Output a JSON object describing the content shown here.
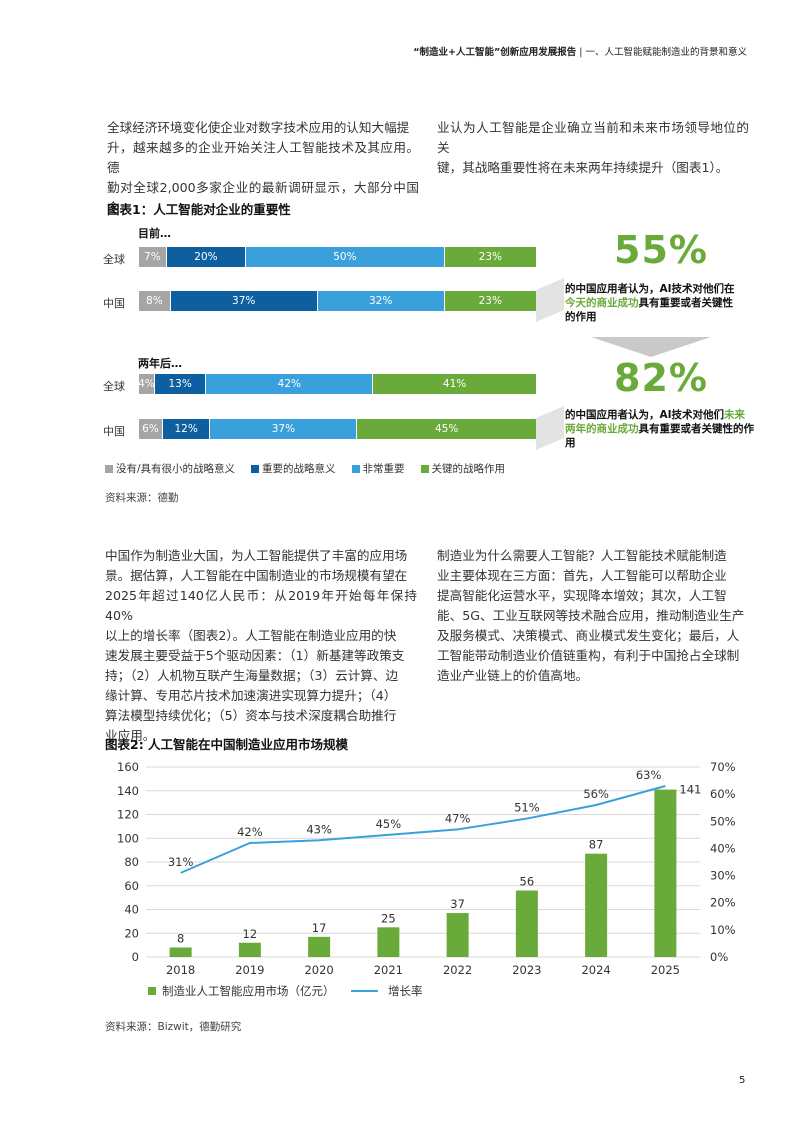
{
  "header": {
    "title": "“制造业+人工智能”创新应用发展报告",
    "section": "一、人工智能赋能制造业的背景和意义"
  },
  "intro": {
    "left_lines": [
      "全球经济环境变化使企业对数字技术应用的认知大幅提",
      "升，越来越多的企业开始关注人工智能技术及其应用。德",
      "勤对全球2,000多家企业的最新调研显示，大部分中国企"
    ],
    "right_lines": [
      "业认为人工智能是企业确立当前和未来市场领导地位的关",
      "键，其战略重要性将在未来两年持续提升（图表1）。"
    ]
  },
  "figure1": {
    "title": "图表1：人工智能对企业的重要性",
    "groups": [
      {
        "label": "目前…",
        "rows": [
          {
            "label": "全球",
            "values": [
              7,
              20,
              50,
              23
            ],
            "labels": [
              "7%",
              "20%",
              "50%",
              "23%"
            ]
          },
          {
            "label": "中国",
            "values": [
              8,
              37,
              32,
              23
            ],
            "labels": [
              "8%",
              "37%",
              "32%",
              "23%"
            ]
          }
        ],
        "big_number": "55%",
        "note_parts": [
          "的中国应用者认为，AI技术对他们在",
          "今天的商业成功",
          "具有重要或者关键性",
          "的作用"
        ]
      },
      {
        "label": "两年后…",
        "rows": [
          {
            "label": "全球",
            "values": [
              4,
              13,
              42,
              41
            ],
            "labels": [
              "4%",
              "13%",
              "42%",
              "41%"
            ]
          },
          {
            "label": "中国",
            "values": [
              6,
              12,
              37,
              45
            ],
            "labels": [
              "6%",
              "12%",
              "37%",
              "45%"
            ]
          }
        ],
        "big_number": "82%",
        "note_parts": [
          "的中国应用者认为，AI技术对他们",
          "未来两年的商业成功",
          "具有重要或者关键",
          "性的作用"
        ]
      }
    ],
    "legend": [
      "没有/具有很小的战略意义",
      "重要的战略意义",
      "非常重要",
      "关键的战略作用"
    ],
    "colors": [
      "#a5a5a5",
      "#0d5fa0",
      "#3aa0dc",
      "#6aaa3a"
    ],
    "source": "资料来源：德勤"
  },
  "body": {
    "left_lines": [
      "中国作为制造业大国，为人工智能提供了丰富的应用场",
      "景。据估算，人工智能在中国制造业的市场规模有望在",
      "2025年超过140亿人民币：从2019年开始每年保持40%",
      "以上的增长率（图表2）。人工智能在制造业应用的快",
      "速发展主要受益于5个驱动因素：（1）新基建等政策支",
      "持；（2）人机物互联产生海量数据；（3）云计算、边",
      "缘计算、专用芯片技术加速演进实现算力提升；（4）",
      "算法模型持续优化；（5）资本与技术深度耦合助推行",
      "业应用。"
    ],
    "right_lines": [
      "制造业为什么需要人工智能？人工智能技术赋能制造",
      "业主要体现在三方面：首先，人工智能可以帮助企业",
      "提高智能化运营水平，实现降本增效；其次，人工智",
      "能、5G、工业互联网等技术融合应用，推动制造业生产",
      "及服务模式、决策模式、商业模式发生变化；最后，人",
      "工智能带动制造业价值链重构，有利于中国抢占全球制",
      "造业产业链上的价值高地。"
    ]
  },
  "chart_data": {
    "type": "bar",
    "title": "图表2: 人工智能在中国制造业应用市场规模",
    "categories": [
      "2018",
      "2019",
      "2020",
      "2021",
      "2022",
      "2023",
      "2024",
      "2025"
    ],
    "series": [
      {
        "name": "制造业人工智能应用市场（亿元）",
        "type": "bar",
        "axis": "left",
        "values": [
          8,
          12,
          17,
          25,
          37,
          56,
          87,
          141
        ],
        "color": "#6aaa3a"
      },
      {
        "name": "增长率",
        "type": "line",
        "axis": "right",
        "values": [
          31,
          42,
          43,
          45,
          47,
          51,
          56,
          63
        ],
        "color": "#3aa0dc"
      }
    ],
    "y_left": {
      "min": 0,
      "max": 160,
      "ticks": [
        "0",
        "20",
        "40",
        "60",
        "80",
        "100",
        "120",
        "140",
        "160"
      ]
    },
    "y_right": {
      "min": 0,
      "max": 70,
      "ticks": [
        "0%",
        "10%",
        "20%",
        "30%",
        "40%",
        "50%",
        "60%",
        "70%"
      ]
    },
    "grid": true,
    "legend_position": "bottom-left",
    "source": "资料来源：Bizwit，德勤研究"
  },
  "page_number": "5"
}
